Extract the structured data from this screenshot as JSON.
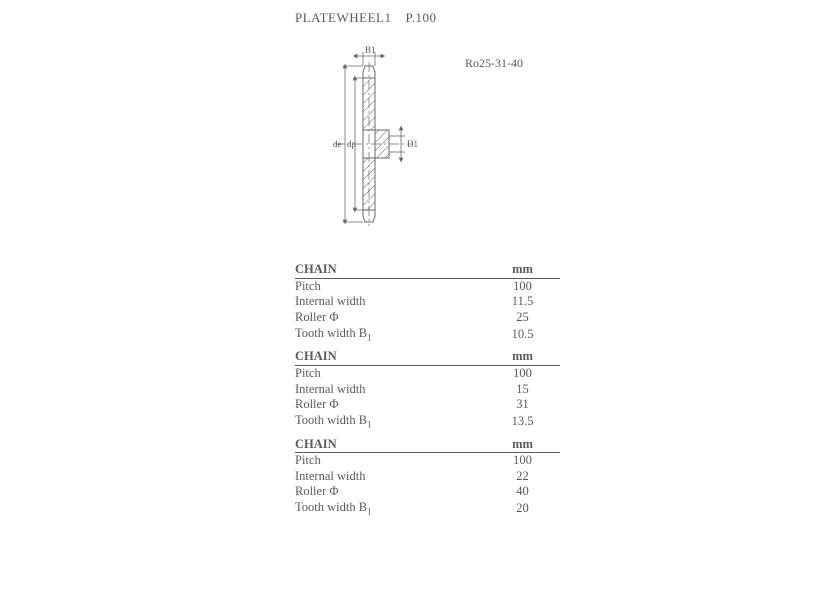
{
  "title_part1": "PLATEWHEEL1",
  "title_part2": "P.100",
  "ro_label": "Ro25-31-40",
  "diagram": {
    "labels": {
      "B1": "B1",
      "de": "de",
      "dp": "dp",
      "D1": "D1"
    },
    "colors": {
      "line": "#6a6a6a",
      "hatch": "#6a6a6a",
      "text": "#5a5a5a"
    }
  },
  "tables": [
    {
      "header_left": "CHAIN",
      "header_right": "mm",
      "rows": [
        {
          "label": "Pitch",
          "value": "100"
        },
        {
          "label": "Internal width",
          "value": "11.5"
        },
        {
          "label": "Roller Φ",
          "value": "25"
        },
        {
          "label_html": "Tooth width B",
          "sub": "1",
          "value": "10.5"
        }
      ]
    },
    {
      "header_left": "CHAIN",
      "header_right": "mm",
      "rows": [
        {
          "label": "Pitch",
          "value": "100"
        },
        {
          "label": "Internal width",
          "value": "15"
        },
        {
          "label": "Roller Φ",
          "value": "31"
        },
        {
          "label_html": "Tooth width B",
          "sub": "1",
          "value": "13.5"
        }
      ]
    },
    {
      "header_left": "CHAIN",
      "header_right": "mm",
      "rows": [
        {
          "label": "Pitch",
          "value": "100"
        },
        {
          "label": "Internal width",
          "value": "22"
        },
        {
          "label": "Roller Φ",
          "value": "40"
        },
        {
          "label_html": "Tooth width B",
          "sub": "1",
          "value": "20"
        }
      ]
    }
  ]
}
